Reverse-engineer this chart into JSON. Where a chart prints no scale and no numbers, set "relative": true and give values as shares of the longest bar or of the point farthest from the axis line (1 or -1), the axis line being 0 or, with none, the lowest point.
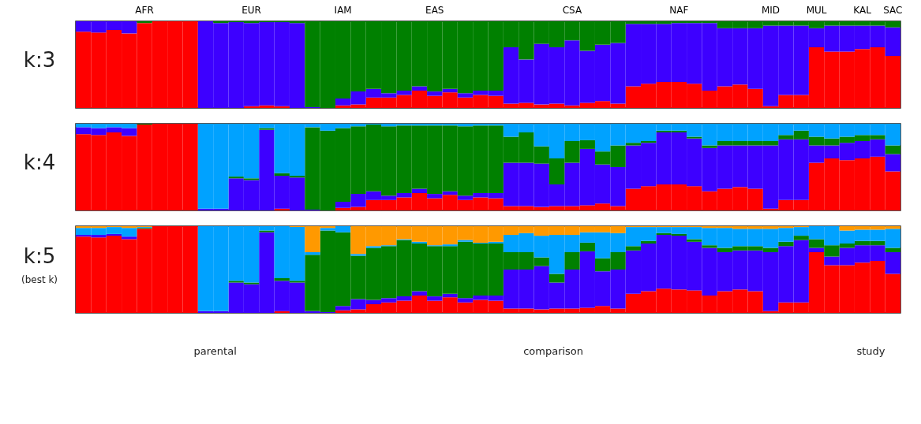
{
  "chart_data": [
    {
      "type": "bar",
      "title": "k:3",
      "stacked": true,
      "relative": true,
      "tick_labels": "x",
      "categories": [
        null,
        null,
        null,
        null,
        "AFR",
        null,
        null,
        null,
        null,
        null,
        null,
        "EUR",
        null,
        null,
        null,
        null,
        null,
        "IAM",
        null,
        null,
        null,
        null,
        null,
        "EAS",
        null,
        null,
        null,
        null,
        null,
        null,
        null,
        null,
        "CSA",
        null,
        null,
        null,
        null,
        null,
        null,
        "NAF",
        null,
        null,
        null,
        null,
        null,
        "MID",
        null,
        null,
        "MUL",
        null,
        null,
        "KAL",
        null,
        "SAC"
      ],
      "series": [
        {
          "color": "#ff0000",
          "values": [
            0.88,
            0.87,
            0.9,
            0.86,
            0.98,
            1,
            1,
            1,
            0,
            0,
            0,
            0.02,
            0.03,
            0.02,
            0,
            0,
            0,
            0.03,
            0.04,
            0.12,
            0.12,
            0.15,
            0.2,
            0.14,
            0.18,
            0.12,
            0.15,
            0.14,
            0.05,
            0.06,
            0.04,
            0.05,
            0.03,
            0.06,
            0.08,
            0.05,
            0.25,
            0.28,
            0.3,
            0.3,
            0.28,
            0.2,
            0.25,
            0.27,
            0.22,
            0.02,
            0.15,
            0.15,
            0.7,
            0.65,
            0.65,
            0.68,
            0.7,
            0.6
          ]
        },
        {
          "color": "#3d00ff",
          "values": [
            0.12,
            0.13,
            0.1,
            0.14,
            0,
            0,
            0,
            0,
            1,
            0.98,
            0.99,
            0.96,
            0.96,
            0.97,
            0.98,
            0.01,
            0,
            0.08,
            0.15,
            0.1,
            0.05,
            0.05,
            0.05,
            0.05,
            0.04,
            0.05,
            0.05,
            0.06,
            0.65,
            0.5,
            0.7,
            0.65,
            0.75,
            0.6,
            0.65,
            0.7,
            0.72,
            0.69,
            0.67,
            0.68,
            0.7,
            0.78,
            0.67,
            0.65,
            0.7,
            0.93,
            0.8,
            0.8,
            0.22,
            0.3,
            0.3,
            0.27,
            0.25,
            0.33
          ]
        },
        {
          "color": "#008000",
          "values": [
            0,
            0,
            0,
            0,
            0.02,
            0,
            0,
            0,
            0,
            0.02,
            0.01,
            0.02,
            0.01,
            0.01,
            0.02,
            0.99,
            1,
            0.89,
            0.81,
            0.78,
            0.83,
            0.8,
            0.75,
            0.81,
            0.78,
            0.83,
            0.8,
            0.8,
            0.3,
            0.44,
            0.26,
            0.3,
            0.22,
            0.34,
            0.27,
            0.25,
            0.03,
            0.03,
            0.03,
            0.02,
            0.02,
            0.02,
            0.08,
            0.08,
            0.08,
            0.05,
            0.05,
            0.05,
            0.08,
            0.05,
            0.05,
            0.05,
            0.05,
            0.07
          ]
        }
      ]
    },
    {
      "type": "bar",
      "title": "k:4",
      "stacked": true,
      "relative": true,
      "tick_labels": false,
      "categories": [
        null,
        null,
        null,
        null,
        null,
        null,
        null,
        null,
        null,
        null,
        null,
        null,
        null,
        null,
        null,
        null,
        null,
        null,
        null,
        null,
        null,
        null,
        null,
        null,
        null,
        null,
        null,
        null,
        null,
        null,
        null,
        null,
        null,
        null,
        null,
        null,
        null,
        null,
        null,
        null,
        null,
        null,
        null,
        null,
        null,
        null,
        null,
        null,
        null,
        null,
        null,
        null,
        null,
        null
      ],
      "series": [
        {
          "color": "#ff0000",
          "values": [
            0.88,
            0.87,
            0.9,
            0.86,
            0.99,
            1,
            1,
            1,
            0,
            0,
            0,
            0,
            0,
            0.02,
            0,
            0,
            0,
            0.03,
            0.04,
            0.12,
            0.12,
            0.15,
            0.2,
            0.14,
            0.18,
            0.12,
            0.15,
            0.14,
            0.05,
            0.05,
            0.04,
            0.05,
            0.05,
            0.06,
            0.08,
            0.05,
            0.25,
            0.28,
            0.3,
            0.3,
            0.28,
            0.22,
            0.25,
            0.27,
            0.25,
            0.02,
            0.12,
            0.12,
            0.55,
            0.6,
            0.58,
            0.6,
            0.62,
            0.45
          ]
        },
        {
          "color": "#3d00ff",
          "values": [
            0.08,
            0.08,
            0.06,
            0.09,
            0,
            0,
            0,
            0,
            0.02,
            0.02,
            0.37,
            0.35,
            0.93,
            0.38,
            0.38,
            0.01,
            0,
            0.07,
            0.15,
            0.1,
            0.05,
            0.05,
            0.05,
            0.05,
            0.04,
            0.05,
            0.05,
            0.06,
            0.5,
            0.5,
            0.5,
            0.25,
            0.5,
            0.65,
            0.45,
            0.45,
            0.5,
            0.5,
            0.6,
            0.6,
            0.55,
            0.5,
            0.5,
            0.48,
            0.5,
            0.73,
            0.7,
            0.7,
            0.2,
            0.15,
            0.2,
            0.2,
            0.2,
            0.2
          ]
        },
        {
          "color": "#008000",
          "values": [
            0,
            0,
            0,
            0,
            0.01,
            0,
            0,
            0,
            0,
            0,
            0.02,
            0.02,
            0.02,
            0.03,
            0.02,
            0.95,
            0.92,
            0.85,
            0.78,
            0.77,
            0.8,
            0.78,
            0.73,
            0.79,
            0.76,
            0.8,
            0.78,
            0.78,
            0.3,
            0.35,
            0.2,
            0.3,
            0.25,
            0.1,
            0.15,
            0.25,
            0.03,
            0.02,
            0.02,
            0.02,
            0.02,
            0.03,
            0.05,
            0.05,
            0.05,
            0.05,
            0.05,
            0.1,
            0.1,
            0.08,
            0.07,
            0.07,
            0.05,
            0.1
          ]
        },
        {
          "color": "#00a2ff",
          "values": [
            0.04,
            0.05,
            0.04,
            0.05,
            0,
            0,
            0,
            0,
            0.98,
            0.98,
            0.61,
            0.63,
            0.05,
            0.57,
            0.6,
            0.04,
            0.08,
            0.05,
            0.03,
            0.01,
            0.03,
            0.02,
            0.02,
            0.02,
            0.02,
            0.03,
            0.02,
            0.02,
            0.15,
            0.1,
            0.26,
            0.4,
            0.2,
            0.19,
            0.32,
            0.25,
            0.22,
            0.2,
            0.08,
            0.08,
            0.15,
            0.25,
            0.2,
            0.2,
            0.2,
            0.2,
            0.13,
            0.08,
            0.15,
            0.17,
            0.15,
            0.13,
            0.13,
            0.25
          ]
        }
      ]
    },
    {
      "type": "bar",
      "title": "k:5",
      "subtitle": "(best k)",
      "stacked": true,
      "relative": true,
      "tick_labels": false,
      "categories": [
        null,
        null,
        null,
        null,
        null,
        null,
        null,
        null,
        null,
        null,
        null,
        null,
        null,
        null,
        null,
        null,
        null,
        null,
        null,
        null,
        null,
        null,
        null,
        null,
        null,
        null,
        null,
        null,
        null,
        null,
        null,
        null,
        null,
        null,
        null,
        null,
        null,
        null,
        null,
        null,
        null,
        null,
        null,
        null,
        null,
        null,
        null,
        null,
        null,
        null,
        null,
        null,
        null,
        null
      ],
      "series": [
        {
          "color": "#ff0000",
          "values": [
            0.88,
            0.87,
            0.89,
            0.85,
            0.97,
            1,
            1,
            1,
            0,
            0,
            0,
            0,
            0,
            0.02,
            0,
            0,
            0,
            0.03,
            0.04,
            0.1,
            0.12,
            0.14,
            0.2,
            0.14,
            0.18,
            0.12,
            0.15,
            0.14,
            0.05,
            0.05,
            0.04,
            0.05,
            0.05,
            0.06,
            0.08,
            0.05,
            0.22,
            0.25,
            0.28,
            0.27,
            0.26,
            0.2,
            0.25,
            0.27,
            0.25,
            0.02,
            0.12,
            0.12,
            0.7,
            0.55,
            0.55,
            0.58,
            0.6,
            0.45
          ]
        },
        {
          "color": "#3d00ff",
          "values": [
            0.02,
            0.03,
            0.02,
            0.03,
            0,
            0,
            0,
            0,
            0.02,
            0.02,
            0.35,
            0.33,
            0.93,
            0.35,
            0.35,
            0.02,
            0.01,
            0.05,
            0.12,
            0.05,
            0.05,
            0.05,
            0.05,
            0.05,
            0.04,
            0.05,
            0.05,
            0.06,
            0.45,
            0.45,
            0.5,
            0.3,
            0.45,
            0.65,
            0.4,
            0.45,
            0.5,
            0.55,
            0.62,
            0.62,
            0.56,
            0.55,
            0.45,
            0.45,
            0.47,
            0.68,
            0.65,
            0.72,
            0.05,
            0.1,
            0.2,
            0.2,
            0.18,
            0.25
          ]
        },
        {
          "color": "#008000",
          "values": [
            0,
            0,
            0,
            0,
            0.01,
            0,
            0,
            0,
            0,
            0,
            0.02,
            0.02,
            0.02,
            0.03,
            0.02,
            0.65,
            0.94,
            0.85,
            0.5,
            0.6,
            0.6,
            0.65,
            0.55,
            0.58,
            0.55,
            0.65,
            0.6,
            0.6,
            0.2,
            0.2,
            0.1,
            0.1,
            0.2,
            0.1,
            0.15,
            0.2,
            0.05,
            0.03,
            0.02,
            0.02,
            0.03,
            0.03,
            0.05,
            0.05,
            0.05,
            0.05,
            0.05,
            0.05,
            0.1,
            0.13,
            0.05,
            0.05,
            0.05,
            0.05
          ]
        },
        {
          "color": "#00a2ff",
          "values": [
            0.08,
            0.08,
            0.08,
            0.1,
            0.01,
            0,
            0,
            0,
            0.98,
            0.98,
            0.63,
            0.65,
            0.05,
            0.6,
            0.62,
            0.03,
            0.03,
            0.07,
            0.02,
            0.02,
            0.01,
            0.01,
            0.02,
            0.01,
            0.02,
            0.02,
            0.01,
            0.02,
            0.2,
            0.22,
            0.25,
            0.45,
            0.2,
            0.12,
            0.3,
            0.22,
            0.22,
            0.16,
            0.07,
            0.08,
            0.14,
            0.2,
            0.23,
            0.2,
            0.2,
            0.22,
            0.16,
            0.1,
            0.15,
            0.22,
            0.15,
            0.13,
            0.13,
            0.22
          ]
        },
        {
          "color": "#ff9900",
          "values": [
            0.02,
            0.02,
            0.01,
            0.02,
            0.01,
            0,
            0,
            0,
            0,
            0,
            0,
            0,
            0,
            0,
            0.01,
            0.3,
            0.02,
            0,
            0.32,
            0.23,
            0.22,
            0.15,
            0.18,
            0.22,
            0.21,
            0.16,
            0.19,
            0.18,
            0.1,
            0.08,
            0.11,
            0.1,
            0.1,
            0.07,
            0.07,
            0.08,
            0.01,
            0.01,
            0.01,
            0.01,
            0.01,
            0.02,
            0.02,
            0.03,
            0.03,
            0.03,
            0.02,
            0.01,
            0,
            0,
            0.05,
            0.04,
            0.04,
            0.03
          ]
        }
      ],
      "annotations": [
        "parental",
        "comparison",
        "study"
      ]
    }
  ]
}
